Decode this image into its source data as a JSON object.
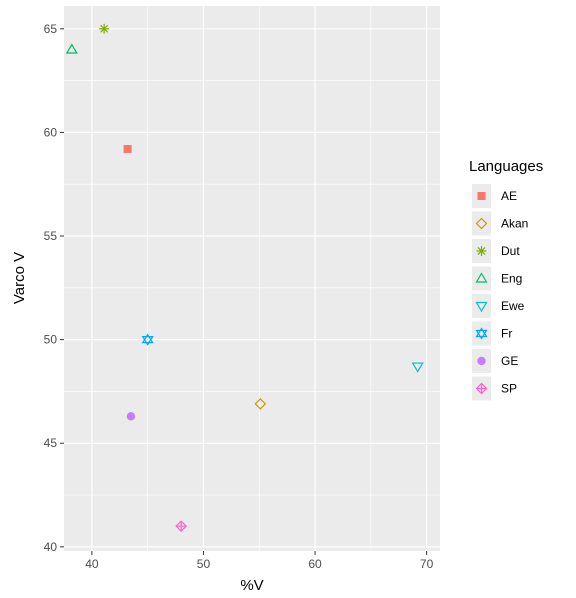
{
  "chart_data": {
    "type": "scatter",
    "title": "",
    "xlabel": "%V",
    "ylabel": "Varco V",
    "xlim": [
      37.5,
      71.2
    ],
    "ylim": [
      39.8,
      66.1
    ],
    "x_ticks": [
      40,
      50,
      60,
      70
    ],
    "y_ticks": [
      40,
      45,
      50,
      55,
      60,
      65
    ],
    "grid": true,
    "legend": {
      "title": "Languages",
      "placement": "right"
    },
    "series": [
      {
        "name": "AE",
        "shape": "square",
        "color": "#F8766D",
        "x": [
          43.2
        ],
        "y": [
          59.2
        ]
      },
      {
        "name": "Akan",
        "shape": "diamond",
        "color": "#CD9600",
        "x": [
          55.1
        ],
        "y": [
          46.9
        ]
      },
      {
        "name": "Dut",
        "shape": "asterisk",
        "color": "#7CAE00",
        "x": [
          41.1
        ],
        "y": [
          65.0
        ]
      },
      {
        "name": "Eng",
        "shape": "triangle-up",
        "color": "#00BE67",
        "x": [
          38.2
        ],
        "y": [
          64.0
        ]
      },
      {
        "name": "Ewe",
        "shape": "triangle-down",
        "color": "#00BFC4",
        "x": [
          69.2
        ],
        "y": [
          48.7
        ]
      },
      {
        "name": "Fr",
        "shape": "star-of-david",
        "color": "#00A9FF",
        "x": [
          45.0
        ],
        "y": [
          50.0
        ]
      },
      {
        "name": "GE",
        "shape": "circle",
        "color": "#C77CFF",
        "x": [
          43.5
        ],
        "y": [
          46.3
        ]
      },
      {
        "name": "SP",
        "shape": "diamond-plus",
        "color": "#FF61CC",
        "x": [
          48.0
        ],
        "y": [
          41.0
        ]
      }
    ]
  },
  "colors": {
    "panel_background": "#EBEBEB",
    "grid_major": "#FFFFFF",
    "legend_key_background": "#EBEBEB"
  }
}
